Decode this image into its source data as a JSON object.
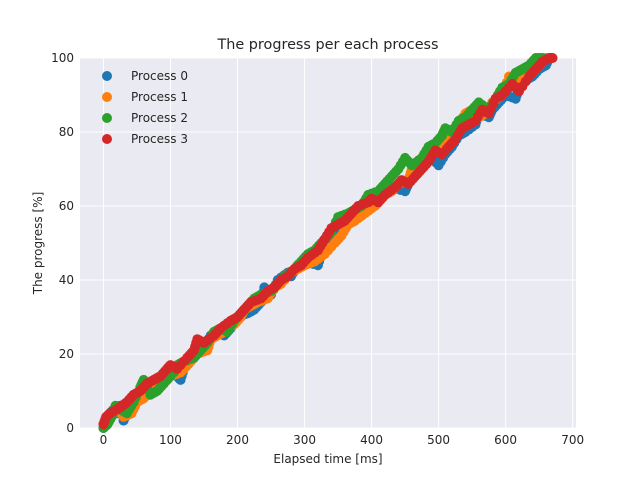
{
  "chart_data": {
    "type": "scatter",
    "title": "The progress per each process",
    "xlabel": "Elapsed time [ms]",
    "ylabel": "The progress [%]",
    "xlim": [
      -35,
      705
    ],
    "ylim": [
      0,
      100
    ],
    "xticks": [
      0,
      100,
      200,
      300,
      400,
      500,
      600,
      700
    ],
    "yticks": [
      0,
      20,
      40,
      60,
      80,
      100
    ],
    "grid": true,
    "legend_position": "top-left",
    "series": [
      {
        "name": "Process 0",
        "color": "#1f77b4",
        "points": [
          [
            0,
            0
          ],
          [
            5,
            2
          ],
          [
            10,
            4
          ],
          [
            15,
            5
          ],
          [
            20,
            4
          ],
          [
            25,
            6
          ],
          [
            30,
            2
          ],
          [
            35,
            4
          ],
          [
            40,
            6
          ],
          [
            50,
            7
          ],
          [
            58,
            9
          ],
          [
            75,
            11
          ],
          [
            85,
            13
          ],
          [
            95,
            15
          ],
          [
            110,
            14
          ],
          [
            115,
            13
          ],
          [
            120,
            16
          ],
          [
            130,
            18
          ],
          [
            150,
            22
          ],
          [
            160,
            25
          ],
          [
            170,
            26
          ],
          [
            180,
            25
          ],
          [
            190,
            27
          ],
          [
            200,
            30
          ],
          [
            215,
            31
          ],
          [
            225,
            32
          ],
          [
            235,
            34
          ],
          [
            240,
            38
          ],
          [
            250,
            36
          ],
          [
            260,
            40
          ],
          [
            275,
            42
          ],
          [
            280,
            41
          ],
          [
            290,
            44
          ],
          [
            300,
            45
          ],
          [
            320,
            44
          ],
          [
            325,
            47
          ],
          [
            330,
            48
          ],
          [
            340,
            50
          ],
          [
            350,
            53
          ],
          [
            360,
            55
          ],
          [
            370,
            57
          ],
          [
            380,
            58
          ],
          [
            390,
            59
          ],
          [
            400,
            62
          ],
          [
            420,
            64
          ],
          [
            430,
            65
          ],
          [
            450,
            64
          ],
          [
            455,
            66
          ],
          [
            460,
            69
          ],
          [
            470,
            70
          ],
          [
            480,
            72
          ],
          [
            490,
            73
          ],
          [
            500,
            71
          ],
          [
            510,
            74
          ],
          [
            520,
            76
          ],
          [
            530,
            79
          ],
          [
            540,
            80
          ],
          [
            555,
            82
          ],
          [
            560,
            85
          ],
          [
            575,
            84
          ],
          [
            580,
            86
          ],
          [
            590,
            88
          ],
          [
            600,
            90
          ],
          [
            615,
            89
          ],
          [
            620,
            92
          ],
          [
            630,
            94
          ],
          [
            640,
            95
          ],
          [
            650,
            97
          ],
          [
            660,
            98
          ],
          [
            665,
            100
          ]
        ]
      },
      {
        "name": "Process 1",
        "color": "#ff7f0e",
        "points": [
          [
            0,
            1
          ],
          [
            8,
            3
          ],
          [
            14,
            4
          ],
          [
            22,
            5
          ],
          [
            30,
            3
          ],
          [
            42,
            4
          ],
          [
            50,
            7
          ],
          [
            60,
            8
          ],
          [
            70,
            10
          ],
          [
            80,
            11
          ],
          [
            90,
            12
          ],
          [
            100,
            14
          ],
          [
            115,
            15
          ],
          [
            120,
            16
          ],
          [
            130,
            18
          ],
          [
            140,
            20
          ],
          [
            155,
            21
          ],
          [
            160,
            24
          ],
          [
            170,
            25
          ],
          [
            180,
            26
          ],
          [
            195,
            28
          ],
          [
            205,
            30
          ],
          [
            210,
            32
          ],
          [
            220,
            33
          ],
          [
            230,
            34
          ],
          [
            245,
            35
          ],
          [
            255,
            38
          ],
          [
            265,
            39
          ],
          [
            280,
            42
          ],
          [
            290,
            43
          ],
          [
            300,
            44
          ],
          [
            315,
            45
          ],
          [
            330,
            47
          ],
          [
            345,
            50
          ],
          [
            355,
            52
          ],
          [
            365,
            55
          ],
          [
            375,
            56
          ],
          [
            390,
            58
          ],
          [
            405,
            60
          ],
          [
            410,
            61
          ],
          [
            420,
            63
          ],
          [
            430,
            64
          ],
          [
            440,
            66
          ],
          [
            455,
            67
          ],
          [
            460,
            70
          ],
          [
            470,
            72
          ],
          [
            480,
            74
          ],
          [
            490,
            75
          ],
          [
            500,
            77
          ],
          [
            510,
            78
          ],
          [
            520,
            80
          ],
          [
            530,
            82
          ],
          [
            540,
            85
          ],
          [
            550,
            86
          ],
          [
            560,
            84
          ],
          [
            570,
            85
          ],
          [
            580,
            88
          ],
          [
            595,
            90
          ],
          [
            605,
            95
          ],
          [
            615,
            93
          ],
          [
            625,
            95
          ],
          [
            640,
            96
          ],
          [
            650,
            98
          ],
          [
            660,
            100
          ]
        ]
      },
      {
        "name": "Process 2",
        "color": "#2ca02c",
        "points": [
          [
            0,
            0
          ],
          [
            6,
            1
          ],
          [
            12,
            3
          ],
          [
            18,
            6
          ],
          [
            25,
            5
          ],
          [
            35,
            4
          ],
          [
            45,
            7
          ],
          [
            55,
            11
          ],
          [
            60,
            13
          ],
          [
            70,
            9
          ],
          [
            80,
            10
          ],
          [
            90,
            12
          ],
          [
            105,
            15
          ],
          [
            110,
            17
          ],
          [
            120,
            18
          ],
          [
            135,
            19
          ],
          [
            145,
            21
          ],
          [
            155,
            23
          ],
          [
            165,
            26
          ],
          [
            175,
            27
          ],
          [
            185,
            26
          ],
          [
            195,
            29
          ],
          [
            205,
            31
          ],
          [
            215,
            33
          ],
          [
            225,
            35
          ],
          [
            235,
            36
          ],
          [
            250,
            37
          ],
          [
            260,
            39
          ],
          [
            270,
            41
          ],
          [
            285,
            43
          ],
          [
            295,
            45
          ],
          [
            305,
            47
          ],
          [
            315,
            48
          ],
          [
            325,
            50
          ],
          [
            335,
            52
          ],
          [
            340,
            53
          ],
          [
            350,
            57
          ],
          [
            365,
            58
          ],
          [
            375,
            59
          ],
          [
            385,
            60
          ],
          [
            395,
            63
          ],
          [
            410,
            64
          ],
          [
            420,
            66
          ],
          [
            430,
            68
          ],
          [
            440,
            70
          ],
          [
            450,
            73
          ],
          [
            460,
            71
          ],
          [
            475,
            73
          ],
          [
            485,
            76
          ],
          [
            495,
            77
          ],
          [
            505,
            79
          ],
          [
            510,
            81
          ],
          [
            520,
            80
          ],
          [
            530,
            83
          ],
          [
            540,
            84
          ],
          [
            550,
            86
          ],
          [
            560,
            88
          ],
          [
            575,
            86
          ],
          [
            585,
            89
          ],
          [
            595,
            92
          ],
          [
            605,
            93
          ],
          [
            615,
            96
          ],
          [
            625,
            97
          ],
          [
            635,
            98
          ],
          [
            645,
            100
          ],
          [
            655,
            100
          ]
        ]
      },
      {
        "name": "Process 3",
        "color": "#d62728",
        "points": [
          [
            0,
            1
          ],
          [
            4,
            3
          ],
          [
            10,
            4
          ],
          [
            20,
            5
          ],
          [
            28,
            6
          ],
          [
            35,
            7
          ],
          [
            45,
            9
          ],
          [
            55,
            10
          ],
          [
            65,
            12
          ],
          [
            75,
            13
          ],
          [
            85,
            14
          ],
          [
            95,
            16
          ],
          [
            100,
            17
          ],
          [
            110,
            16
          ],
          [
            125,
            19
          ],
          [
            135,
            21
          ],
          [
            140,
            24
          ],
          [
            150,
            23
          ],
          [
            165,
            25
          ],
          [
            175,
            27
          ],
          [
            190,
            29
          ],
          [
            200,
            30
          ],
          [
            210,
            32
          ],
          [
            220,
            34
          ],
          [
            235,
            35
          ],
          [
            245,
            37
          ],
          [
            255,
            38
          ],
          [
            265,
            40
          ],
          [
            275,
            41
          ],
          [
            285,
            43
          ],
          [
            295,
            44
          ],
          [
            305,
            46
          ],
          [
            320,
            48
          ],
          [
            330,
            51
          ],
          [
            340,
            54
          ],
          [
            350,
            55
          ],
          [
            360,
            56
          ],
          [
            370,
            58
          ],
          [
            380,
            60
          ],
          [
            395,
            61
          ],
          [
            400,
            62
          ],
          [
            410,
            61
          ],
          [
            420,
            63
          ],
          [
            435,
            65
          ],
          [
            445,
            67
          ],
          [
            455,
            66
          ],
          [
            465,
            68
          ],
          [
            475,
            70
          ],
          [
            485,
            72
          ],
          [
            495,
            75
          ],
          [
            505,
            74
          ],
          [
            515,
            76
          ],
          [
            525,
            78
          ],
          [
            535,
            81
          ],
          [
            545,
            82
          ],
          [
            555,
            83
          ],
          [
            565,
            86
          ],
          [
            575,
            85
          ],
          [
            585,
            89
          ],
          [
            595,
            90
          ],
          [
            610,
            93
          ],
          [
            620,
            91
          ],
          [
            635,
            95
          ],
          [
            645,
            97
          ],
          [
            655,
            99
          ],
          [
            665,
            100
          ],
          [
            670,
            100
          ]
        ]
      }
    ]
  }
}
